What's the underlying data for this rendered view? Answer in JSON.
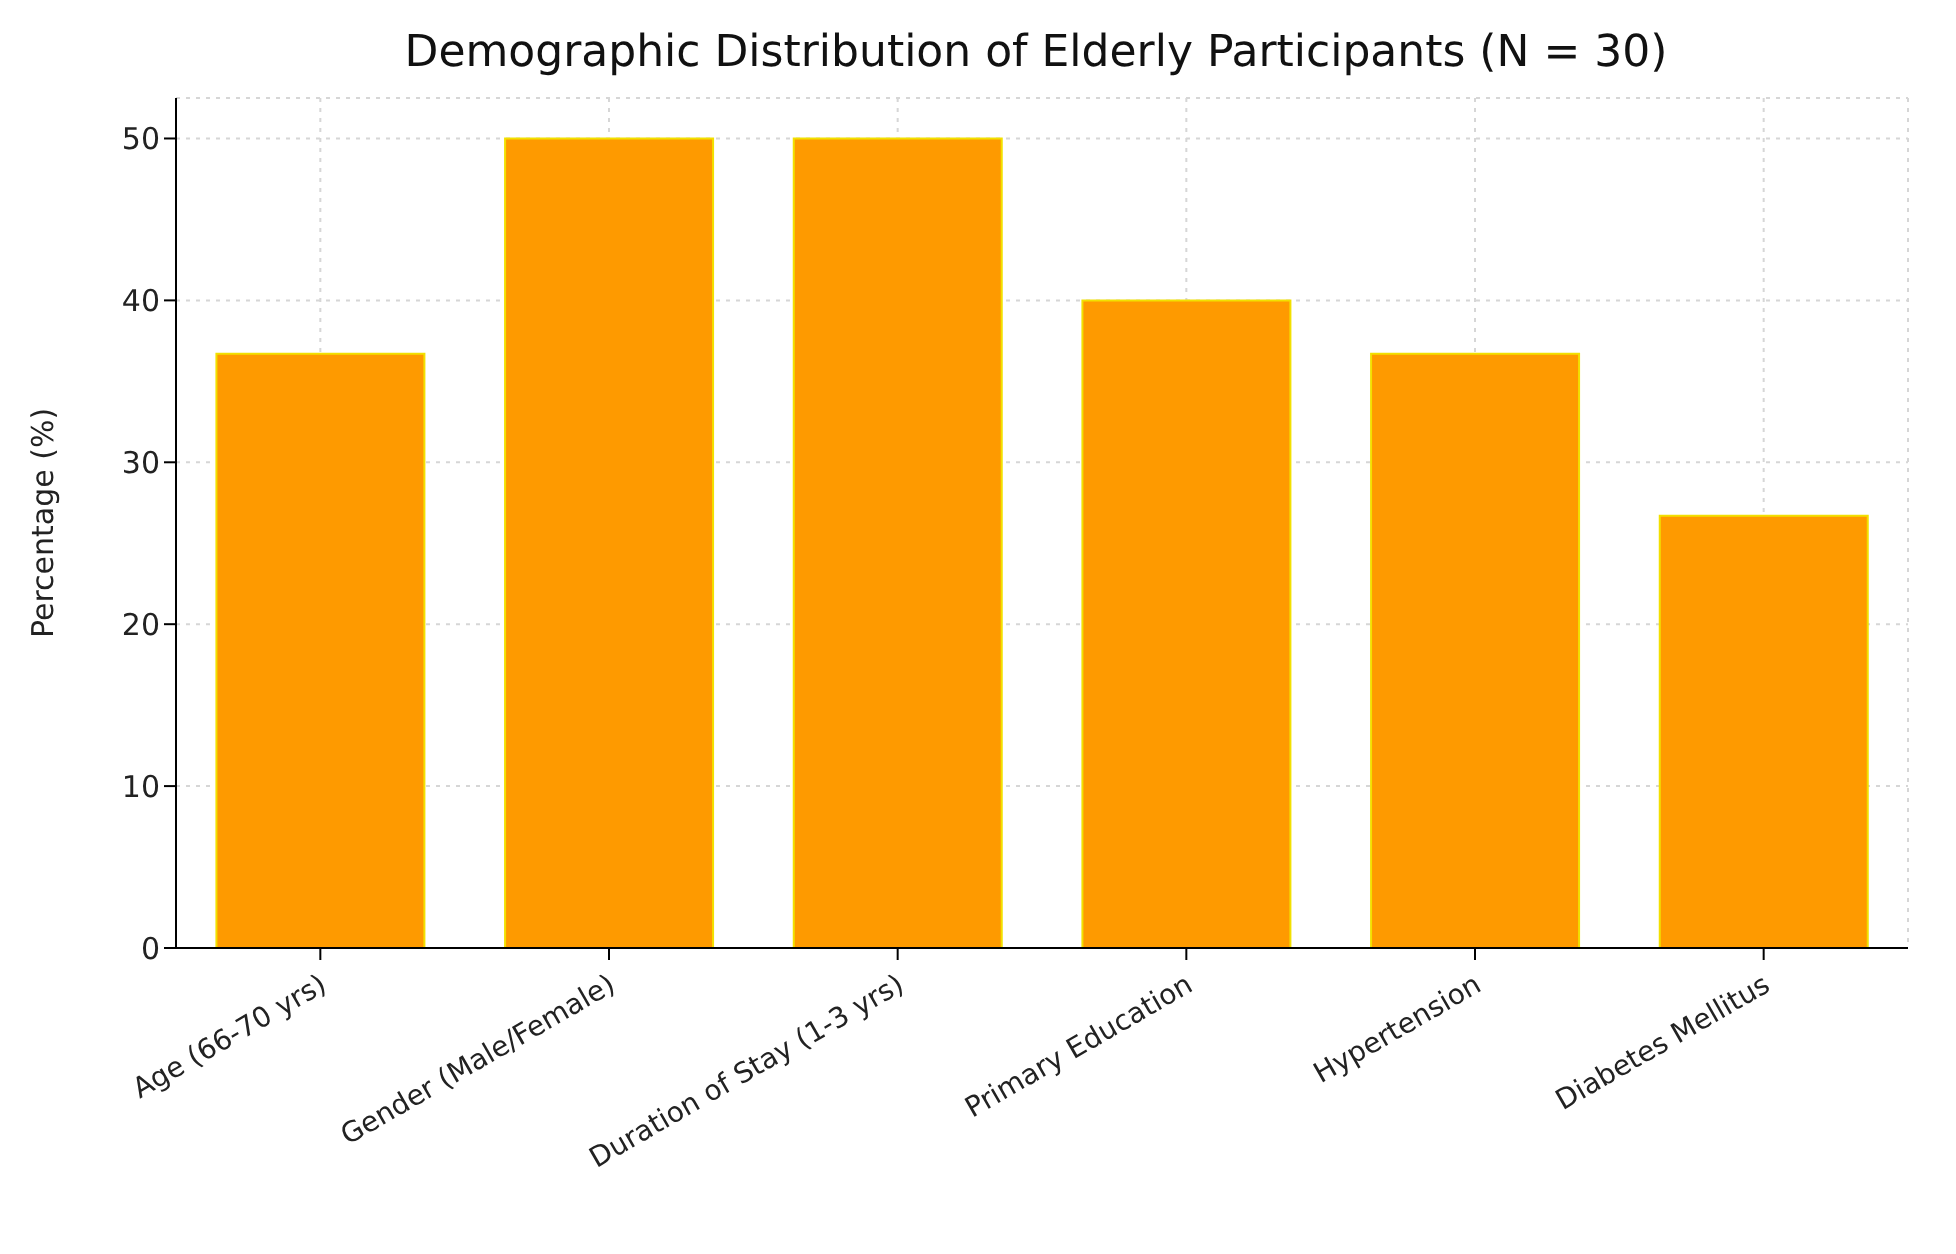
{
  "chart_data": {
    "type": "bar",
    "title": "Demographic Distribution of Elderly Participants (N = 30)",
    "ylabel": "Percentage (%)",
    "categories": [
      "Age (66-70 yrs)",
      "Gender (Male/Female)",
      "Duration of Stay (1-3 yrs)",
      "Primary Education",
      "Hypertension",
      "Diabetes Mellitus"
    ],
    "values": [
      36.7,
      50,
      50,
      40,
      36.7,
      26.7
    ],
    "color": "#fe9a00",
    "ylim": [
      0,
      52.5
    ],
    "yticks": [
      0,
      10,
      20,
      30,
      40,
      50
    ],
    "grid": true
  }
}
